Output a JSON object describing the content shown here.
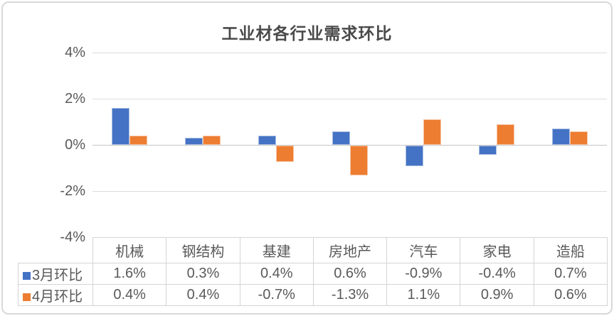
{
  "chart_data": {
    "type": "bar",
    "title": "工业材各行业需求环比",
    "xlabel": "",
    "ylabel": "",
    "categories": [
      "机械",
      "钢结构",
      "基建",
      "房地产",
      "汽车",
      "家电",
      "造船"
    ],
    "series": [
      {
        "name": "3月环比",
        "color": "#4472C4",
        "values": [
          1.6,
          0.3,
          0.4,
          0.6,
          -0.9,
          -0.4,
          0.7
        ],
        "labels": [
          "1.6%",
          "0.3%",
          "0.4%",
          "0.6%",
          "-0.9%",
          "-0.4%",
          "0.7%"
        ]
      },
      {
        "name": "4月环比",
        "color": "#ED7D31",
        "values": [
          0.4,
          0.4,
          -0.7,
          -1.3,
          1.1,
          0.9,
          0.6
        ],
        "labels": [
          "0.4%",
          "0.4%",
          "-0.7%",
          "-1.3%",
          "1.1%",
          "0.9%",
          "0.6%"
        ]
      }
    ],
    "ylim": [
      -4,
      4
    ],
    "yticks": [
      {
        "label": "4%",
        "value": 4
      },
      {
        "label": "2%",
        "value": 2
      },
      {
        "label": "0%",
        "value": 0
      },
      {
        "label": "-2%",
        "value": -2
      },
      {
        "label": "-4%",
        "value": -4
      }
    ],
    "grid": true,
    "legend_position": "data-table-row-labels",
    "data_table": true
  },
  "colors": {
    "series1": "#4472C4",
    "series2": "#ED7D31",
    "gridline": "#DCDCDC",
    "zero_line": "#C6C6C6",
    "axis_text": "#595959",
    "title_text": "#4A4A4A",
    "table_border": "#D4D4D4",
    "frame_border": "#D8D8D8",
    "background": "#FFFFFF"
  }
}
